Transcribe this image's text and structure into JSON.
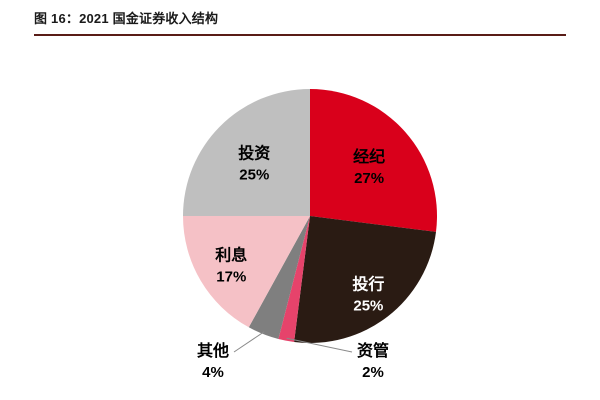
{
  "figure": {
    "title": "图 16：2021 国金证券收入结构"
  },
  "colors": {
    "accent_line": "#591C17",
    "background": "#FFFFFF"
  },
  "chart_data": {
    "type": "pie",
    "title": "2021 国金证券收入结构",
    "start_angle_deg": 0,
    "direction": "clockwise",
    "legend": "none",
    "data_labels": "name-and-percent",
    "slices": [
      {
        "label": "经纪",
        "value": 27,
        "color": "#D9001B",
        "text_color": "#000000",
        "outside": false
      },
      {
        "label": "投行",
        "value": 25,
        "color": "#2A1B13",
        "text_color": "#FFFFFF",
        "outside": false
      },
      {
        "label": "资管",
        "value": 2,
        "color": "#E6436B",
        "text_color": "#000000",
        "outside": true
      },
      {
        "label": "其他",
        "value": 4,
        "color": "#7F7F7F",
        "text_color": "#000000",
        "outside": true
      },
      {
        "label": "利息",
        "value": 17,
        "color": "#F5C1C6",
        "text_color": "#000000",
        "outside": false
      },
      {
        "label": "投资",
        "value": 25,
        "color": "#BFBFBF",
        "text_color": "#000000",
        "outside": false
      }
    ]
  }
}
